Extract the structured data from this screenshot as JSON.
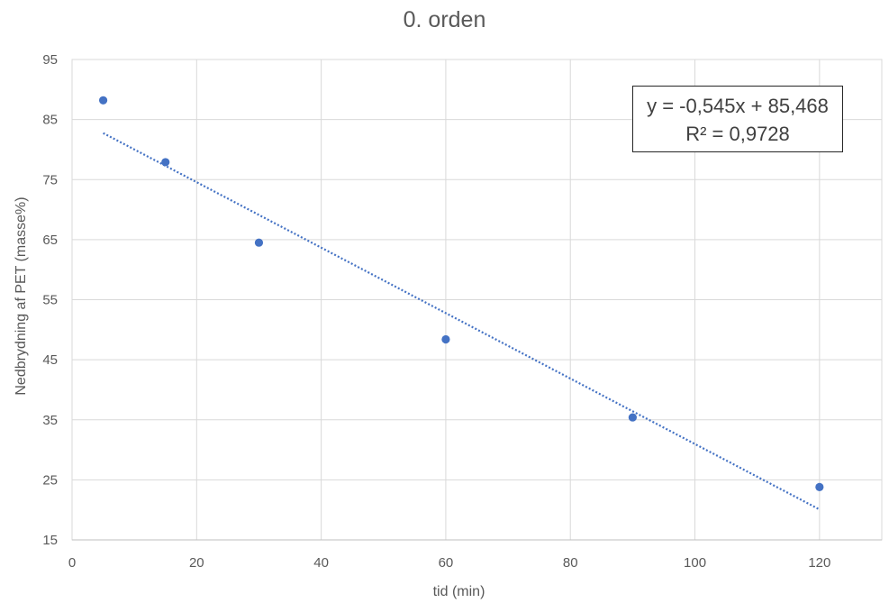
{
  "chart_data": {
    "type": "scatter",
    "title": "0. orden",
    "xlabel": "tid (min)",
    "ylabel": "Nedbrydning af PET (masse%)",
    "xlim": [
      0,
      130
    ],
    "ylim": [
      15,
      95
    ],
    "x_ticks": [
      0,
      20,
      40,
      60,
      80,
      100,
      120
    ],
    "y_ticks": [
      15,
      25,
      35,
      45,
      55,
      65,
      75,
      85,
      95
    ],
    "grid": true,
    "series": [
      {
        "x": [
          5,
          15,
          30,
          60,
          90,
          120
        ],
        "y": [
          88.2,
          77.9,
          64.5,
          48.4,
          35.4,
          23.8
        ],
        "color": "#4472C4"
      }
    ],
    "trendline": {
      "type": "linear",
      "slope": -0.545,
      "intercept": 85.468,
      "x_range": [
        5,
        120
      ],
      "style": "dotted",
      "color": "#4472C4",
      "equation": "y = -0,545x + 85,468",
      "r_squared": "R² = 0,9728"
    }
  }
}
